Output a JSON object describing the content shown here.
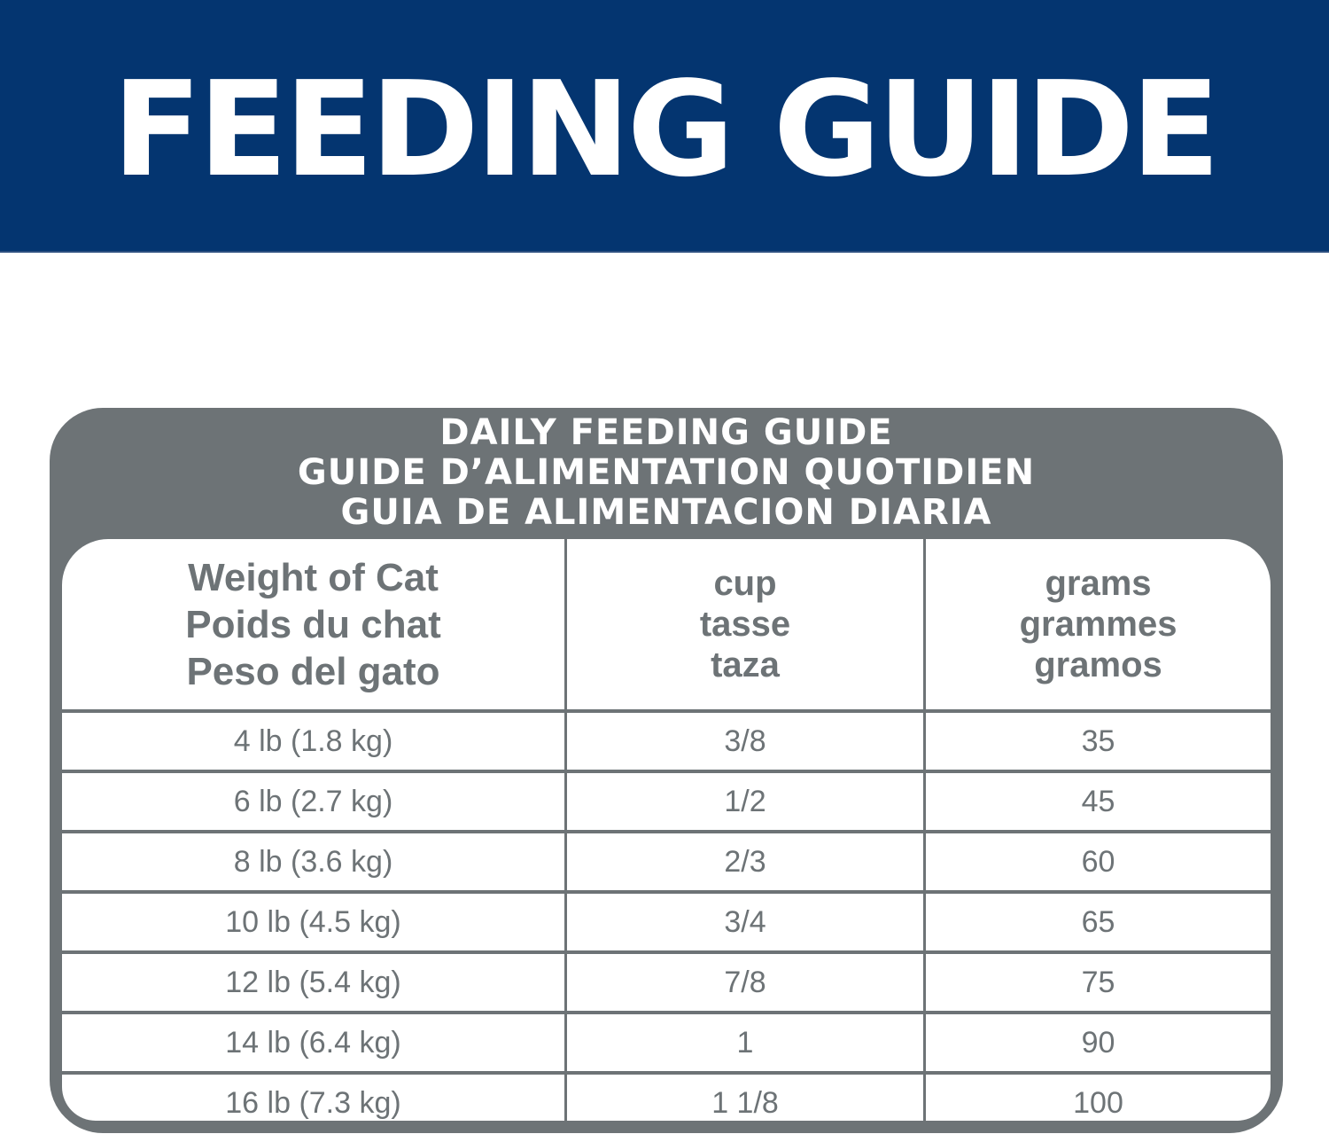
{
  "banner": {
    "title": "FEEDING GUIDE",
    "background_color": "#043570",
    "text_color": "#ffffff"
  },
  "card": {
    "frame_color": "#6d7376",
    "heading_lines": [
      "DAILY FEEDING GUIDE",
      "GUIDE D’ALIMENTATION QUOTIDIEN",
      "GUIA DE ALIMENTACION DIARIA"
    ],
    "columns": [
      {
        "lines": [
          "Weight of Cat",
          "Poids du chat",
          "Peso del gato"
        ]
      },
      {
        "lines": [
          "cup",
          "tasse",
          "taza"
        ]
      },
      {
        "lines": [
          "grams",
          "grammes",
          "gramos"
        ]
      }
    ],
    "rows": [
      {
        "weight": "4 lb (1.8 kg)",
        "cup": "3/8",
        "grams": "35"
      },
      {
        "weight": "6 lb (2.7 kg)",
        "cup": "1/2",
        "grams": "45"
      },
      {
        "weight": "8 lb (3.6 kg)",
        "cup": "2/3",
        "grams": "60"
      },
      {
        "weight": "10 lb (4.5 kg)",
        "cup": "3/4",
        "grams": "65"
      },
      {
        "weight": "12 lb (5.4 kg)",
        "cup": "7/8",
        "grams": "75"
      },
      {
        "weight": "14 lb (6.4 kg)",
        "cup": "1",
        "grams": "90"
      },
      {
        "weight": "16 lb (7.3 kg)",
        "cup": "1 1/8",
        "grams": "100"
      }
    ]
  }
}
